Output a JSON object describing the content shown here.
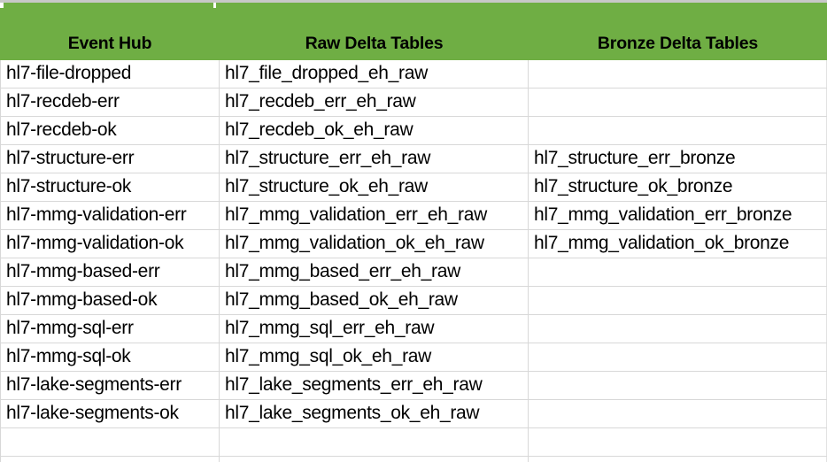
{
  "colors": {
    "header_background": "#6FAE44",
    "header_text": "#000000",
    "gridline": "#D8D8D8",
    "cell_text": "#000000",
    "background": "#FFFFFF"
  },
  "table": {
    "columns": [
      "Event Hub",
      "Raw Delta Tables",
      "Bronze Delta Tables"
    ],
    "rows": [
      {
        "event_hub": "hl7-file-dropped",
        "raw_delta_table": "hl7_file_dropped_eh_raw",
        "bronze_delta_table": ""
      },
      {
        "event_hub": "hl7-recdeb-err",
        "raw_delta_table": "hl7_recdeb_err_eh_raw",
        "bronze_delta_table": ""
      },
      {
        "event_hub": "hl7-recdeb-ok",
        "raw_delta_table": "hl7_recdeb_ok_eh_raw",
        "bronze_delta_table": ""
      },
      {
        "event_hub": "hl7-structure-err",
        "raw_delta_table": "hl7_structure_err_eh_raw",
        "bronze_delta_table": "hl7_structure_err_bronze"
      },
      {
        "event_hub": "hl7-structure-ok",
        "raw_delta_table": "hl7_structure_ok_eh_raw",
        "bronze_delta_table": "hl7_structure_ok_bronze"
      },
      {
        "event_hub": "hl7-mmg-validation-err",
        "raw_delta_table": "hl7_mmg_validation_err_eh_raw",
        "bronze_delta_table": "hl7_mmg_validation_err_bronze"
      },
      {
        "event_hub": "hl7-mmg-validation-ok",
        "raw_delta_table": "hl7_mmg_validation_ok_eh_raw",
        "bronze_delta_table": "hl7_mmg_validation_ok_bronze"
      },
      {
        "event_hub": "hl7-mmg-based-err",
        "raw_delta_table": "hl7_mmg_based_err_eh_raw",
        "bronze_delta_table": ""
      },
      {
        "event_hub": "hl7-mmg-based-ok",
        "raw_delta_table": "hl7_mmg_based_ok_eh_raw",
        "bronze_delta_table": ""
      },
      {
        "event_hub": "hl7-mmg-sql-err",
        "raw_delta_table": "hl7_mmg_sql_err_eh_raw",
        "bronze_delta_table": ""
      },
      {
        "event_hub": "hl7-mmg-sql-ok",
        "raw_delta_table": "hl7_mmg_sql_ok_eh_raw",
        "bronze_delta_table": ""
      },
      {
        "event_hub": "hl7-lake-segments-err",
        "raw_delta_table": "hl7_lake_segments_err_eh_raw",
        "bronze_delta_table": ""
      },
      {
        "event_hub": "hl7-lake-segments-ok",
        "raw_delta_table": "hl7_lake_segments_ok_eh_raw",
        "bronze_delta_table": ""
      },
      {
        "event_hub": "",
        "raw_delta_table": "",
        "bronze_delta_table": ""
      }
    ]
  }
}
